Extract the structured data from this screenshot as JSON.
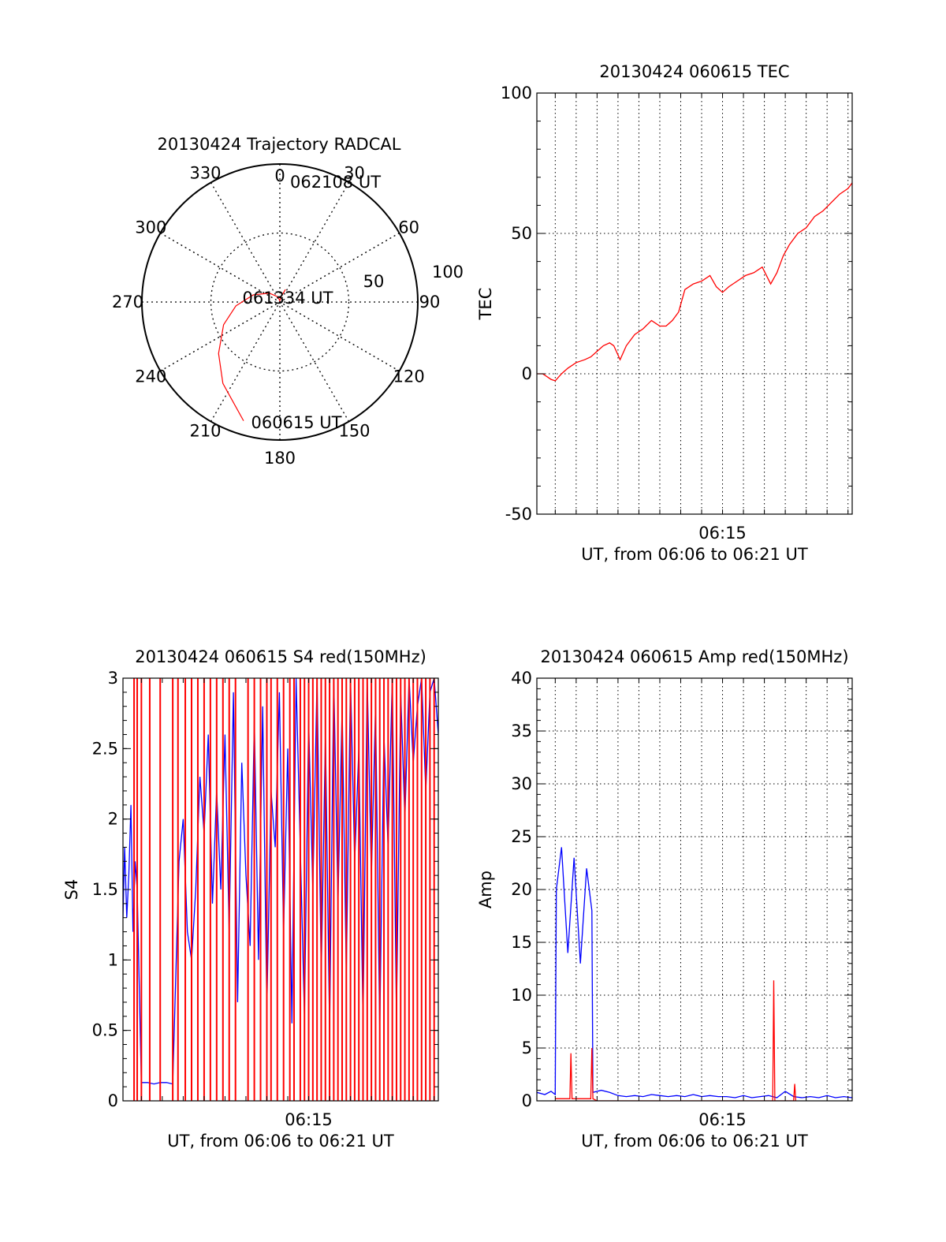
{
  "colors": {
    "red": "#ff0000",
    "blue": "#0000ff",
    "axis": "#000000",
    "grid": "#000000"
  },
  "chart_data": [
    {
      "type": "polar",
      "title": "20130424 Trajectory RADCAL",
      "angle_labels": [
        "0",
        "30",
        "60",
        "90",
        "120",
        "150",
        "180",
        "210",
        "240",
        "270",
        "300",
        "330"
      ],
      "radial_labels": [
        "50",
        "100"
      ],
      "grid": true,
      "series": [
        {
          "color": "red",
          "points": [
            [
              197,
              90
            ],
            [
              215,
              72
            ],
            [
              230,
              58
            ],
            [
              248,
              44
            ],
            [
              265,
              32
            ],
            [
              285,
              20
            ],
            [
              310,
              10
            ],
            [
              340,
              4
            ],
            [
              356,
              1
            ],
            [
              14,
              4
            ],
            [
              24,
              10
            ]
          ]
        }
      ],
      "annotations": [
        "062108 UT",
        "061334 UT",
        "060615 UT"
      ]
    },
    {
      "type": "line",
      "title": "20130424 060615 TEC",
      "xlabel": "UT, from 06:06 to 06:21 UT",
      "ylabel": "TEC",
      "x_tick_labels": [
        "06:15"
      ],
      "y_tick_labels": [
        "-50",
        "0",
        "50",
        "100"
      ],
      "ylim": [
        -50,
        100
      ],
      "xlim_min": [
        6.12,
        21.2
      ],
      "grid": true,
      "series": [
        {
          "color": "red",
          "x": [
            6.12,
            6.4,
            6.8,
            7.0,
            7.3,
            7.6,
            8.0,
            8.4,
            8.7,
            9.0,
            9.3,
            9.6,
            9.8,
            10.1,
            10.4,
            10.8,
            11.2,
            11.6,
            12.0,
            12.3,
            12.6,
            12.9,
            13.2,
            13.6,
            14.0,
            14.4,
            14.7,
            15.0,
            15.3,
            15.7,
            16.1,
            16.5,
            16.9,
            17.3,
            17.6,
            17.9,
            18.2,
            18.6,
            19.0,
            19.4,
            19.8,
            20.2,
            20.6,
            21.0,
            21.2
          ],
          "y": [
            0,
            0,
            -2,
            -2.5,
            0,
            2,
            4,
            5,
            6,
            8,
            10,
            11,
            10,
            5,
            10,
            14,
            16,
            19,
            17,
            17,
            19,
            22,
            30,
            32,
            33,
            35,
            31,
            29,
            31,
            33,
            35,
            36,
            38,
            32,
            36,
            42,
            46,
            50,
            52,
            56,
            58,
            61,
            64,
            66,
            68
          ]
        }
      ]
    },
    {
      "type": "line",
      "title": "20130424 060615 S4 red(150MHz)",
      "xlabel": "UT, from 06:06 to 06:21 UT",
      "ylabel": "S4",
      "x_tick_labels": [
        "06:15"
      ],
      "y_tick_labels": [
        "0",
        "0.5",
        "1",
        "1.5",
        "2",
        "2.5",
        "3"
      ],
      "ylim": [
        0,
        3
      ],
      "xlim_min": [
        6.12,
        21.2
      ],
      "grid": false,
      "series": [
        {
          "color": "blue",
          "x": [
            6.12,
            6.2,
            6.3,
            6.4,
            6.5,
            6.6,
            6.7,
            6.8,
            7.0,
            7.3,
            7.6,
            7.9,
            8.2,
            8.5,
            8.8,
            9.0,
            9.2,
            9.4,
            9.6,
            9.8,
            10.0,
            10.2,
            10.4,
            10.6,
            10.8,
            11.0,
            11.2,
            11.4,
            11.6,
            11.8,
            12.0,
            12.2,
            12.4,
            12.6,
            12.8,
            13.0,
            13.2,
            13.4,
            13.6,
            13.8,
            14.0,
            14.2,
            14.4,
            14.6,
            14.8,
            15.0,
            15.2,
            15.4,
            15.6,
            15.8,
            16.0,
            16.2,
            16.4,
            16.6,
            16.8,
            17.0,
            17.2,
            17.4,
            17.6,
            17.8,
            18.0,
            18.2,
            18.4,
            18.6,
            18.8,
            19.0,
            19.2,
            19.4,
            19.6,
            19.8,
            20.0,
            20.2,
            20.4,
            20.6,
            20.8,
            21.0,
            21.2
          ],
          "y": [
            1.3,
            1.8,
            1.3,
            1.6,
            2.1,
            1.2,
            1.7,
            1.5,
            0.13,
            0.13,
            0.12,
            0.13,
            0.13,
            0.12,
            1.7,
            2.0,
            1.2,
            1.0,
            1.5,
            2.3,
            1.9,
            2.6,
            1.4,
            2.2,
            1.5,
            2.6,
            1.2,
            2.9,
            0.7,
            2.4,
            1.6,
            1.1,
            2.7,
            1.0,
            2.8,
            0.65,
            2.2,
            1.8,
            2.9,
            1.2,
            2.5,
            0.55,
            3.0,
            1.8,
            0.6,
            2.7,
            1.5,
            3.0,
            0.9,
            2.6,
            0.5,
            3.0,
            1.4,
            2.8,
            0.9,
            3.0,
            1.7,
            2.5,
            0.55,
            3.0,
            1.6,
            2.8,
            0.5,
            2.6,
            1.8,
            3.0,
            0.6,
            2.9,
            2.0,
            3.0,
            2.4,
            2.8,
            3.0,
            2.2,
            2.9,
            3.0,
            2.6
          ]
        },
        {
          "color": "red",
          "vertical_lines_x": [
            6.65,
            6.8,
            7.0,
            7.4,
            7.9,
            8.5,
            8.75,
            9.1,
            9.4,
            9.7,
            10.0,
            10.3,
            10.6,
            10.9,
            11.2,
            11.5,
            12.1,
            12.4,
            12.7,
            13.0,
            13.2,
            13.5,
            13.8,
            14.1,
            14.3,
            14.6,
            14.8,
            15.0,
            15.2,
            15.4,
            15.6,
            15.8,
            16.0,
            16.2,
            16.4,
            16.6,
            16.8,
            17.0,
            17.2,
            17.4,
            17.6,
            17.8,
            18.0,
            18.2,
            18.4,
            18.6,
            18.8,
            19.0,
            19.2,
            19.4,
            19.6,
            19.8,
            20.0,
            20.2,
            20.4,
            20.6,
            20.8,
            21.0
          ]
        }
      ]
    },
    {
      "type": "line",
      "title": "20130424 060615 Amp red(150MHz)",
      "xlabel": "UT, from 06:06 to 06:21 UT",
      "ylabel": "Amp",
      "x_tick_labels": [
        "06:15"
      ],
      "y_tick_labels": [
        "0",
        "5",
        "10",
        "15",
        "20",
        "25",
        "30",
        "35",
        "40"
      ],
      "ylim": [
        0,
        40
      ],
      "xlim_min": [
        6.12,
        21.2
      ],
      "grid": true,
      "series": [
        {
          "color": "blue",
          "x": [
            6.12,
            6.5,
            6.8,
            7.0,
            7.05,
            7.3,
            7.6,
            7.9,
            8.2,
            8.5,
            8.75,
            8.8,
            9.2,
            9.6,
            10.0,
            10.4,
            10.8,
            11.2,
            11.6,
            12.0,
            12.4,
            12.8,
            13.2,
            13.6,
            14.0,
            14.4,
            14.8,
            15.2,
            15.6,
            16.0,
            16.4,
            16.8,
            17.2,
            17.6,
            18.0,
            18.4,
            18.8,
            19.2,
            19.6,
            20.0,
            20.4,
            20.8,
            21.2
          ],
          "y": [
            0.8,
            0.6,
            0.9,
            0.6,
            20.0,
            24.0,
            14.0,
            23.0,
            13.0,
            22.0,
            18.0,
            0.8,
            1.0,
            0.8,
            0.5,
            0.4,
            0.5,
            0.4,
            0.6,
            0.5,
            0.4,
            0.5,
            0.4,
            0.6,
            0.4,
            0.5,
            0.4,
            0.4,
            0.3,
            0.5,
            0.3,
            0.4,
            0.5,
            0.3,
            0.9,
            0.4,
            0.3,
            0.4,
            0.3,
            0.5,
            0.3,
            0.4,
            0.3
          ]
        },
        {
          "color": "red",
          "x": [
            7.0,
            7.5,
            7.7,
            7.75,
            7.8,
            8.5,
            8.7,
            8.75,
            8.8,
            9.0,
            10.0,
            12.0,
            14.0,
            16.0,
            17.4,
            17.45,
            17.5,
            18.0,
            18.4,
            18.45,
            18.5
          ],
          "y": [
            0.2,
            0.2,
            0.2,
            4.5,
            0.2,
            0.2,
            0.2,
            5.0,
            0.2,
            0,
            0,
            0,
            0,
            0,
            0,
            11.4,
            0,
            0,
            0,
            1.6,
            0
          ]
        }
      ]
    }
  ]
}
